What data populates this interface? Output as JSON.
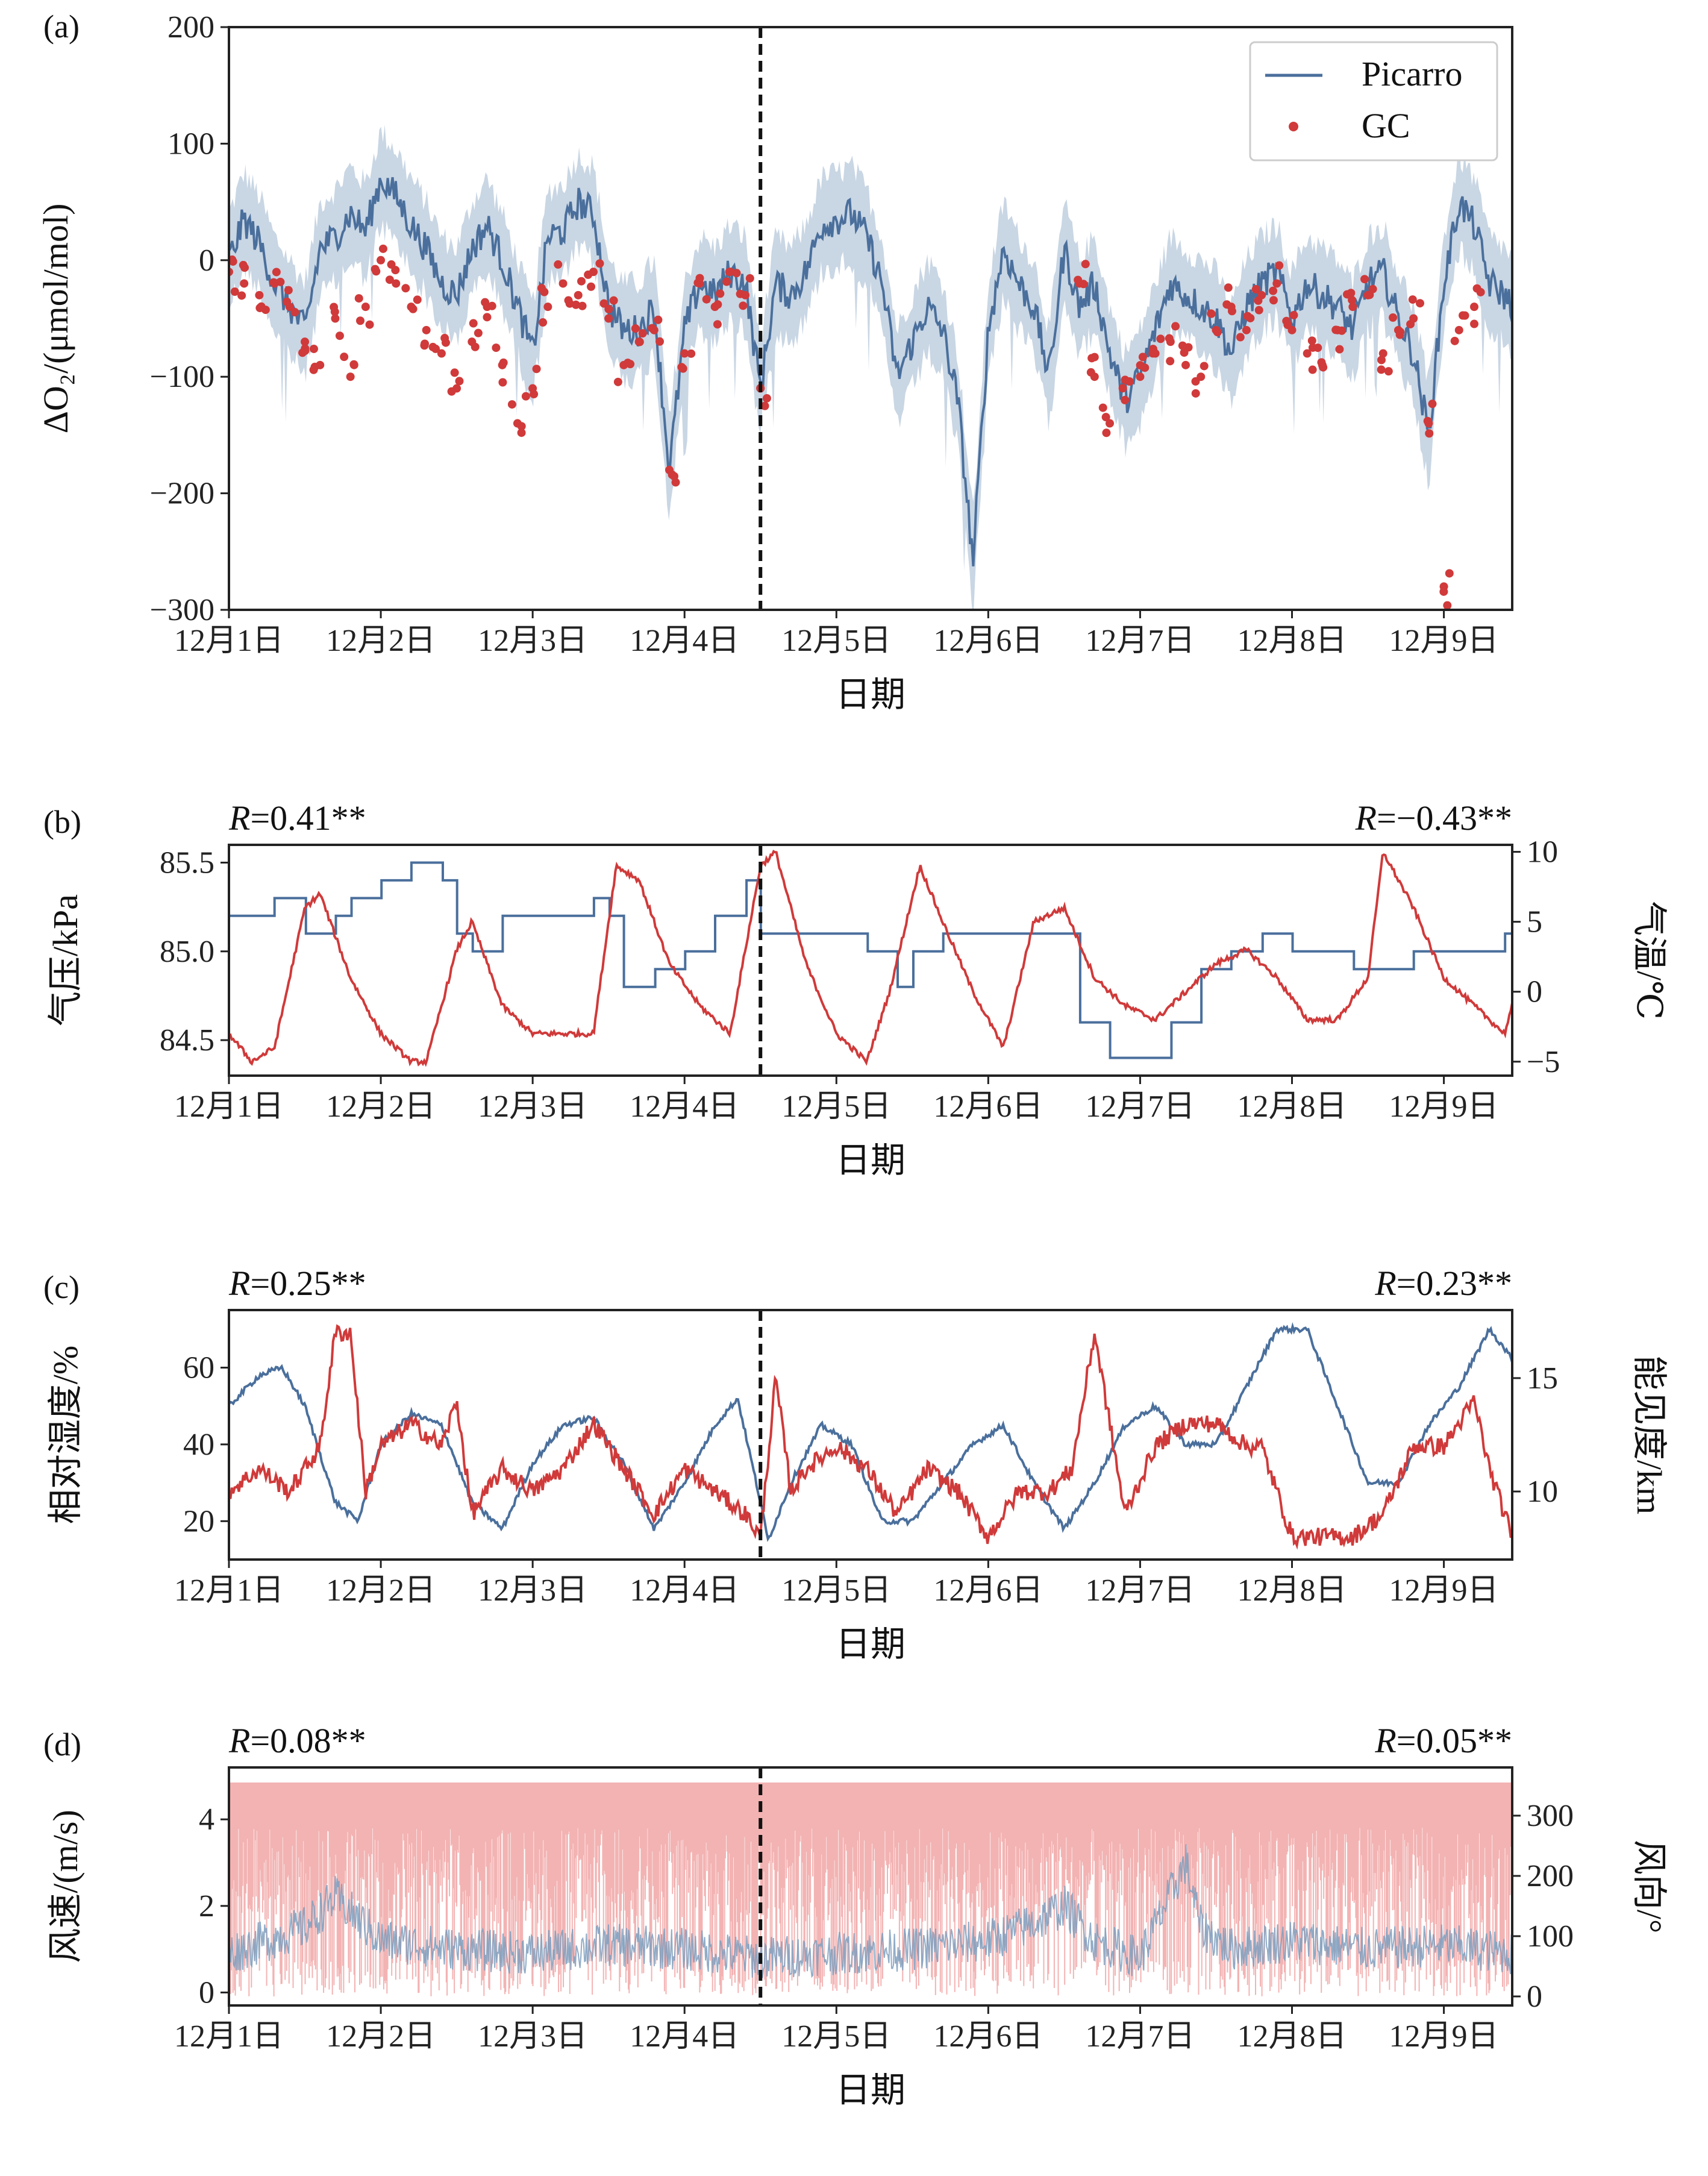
{
  "x_tick_labels": [
    "12月1日",
    "12月2日",
    "12月3日",
    "12月4日",
    "12月5日",
    "12月6日",
    "12月7日",
    "12月8日",
    "12月9日"
  ],
  "x_label": "日期",
  "divider_day": 4.5,
  "colors": {
    "blue": "#4a6f9c",
    "blue_band": "#c9d6e4",
    "red": "#d03a3a",
    "red_light": "#ef9a9a",
    "blue_light": "#7e9dbd"
  },
  "chart_data": [
    {
      "id": "a",
      "panel_label": "(a)",
      "type": "line",
      "ylabel": "ΔO₂/(μmol/mol)",
      "ylim": [
        -300,
        200
      ],
      "yticks": [
        200,
        100,
        0,
        -100,
        -200,
        -300
      ],
      "ytick_labels": [
        "200",
        "100",
        "0",
        "−100",
        "−200",
        "−300"
      ],
      "legend": {
        "placement": "top-right",
        "entries": [
          "Picarro",
          "GC"
        ]
      },
      "series": [
        {
          "name": "Picarro",
          "type": "line",
          "uncertainty_band": 40,
          "x": [
            1.0,
            1.1,
            1.2,
            1.3,
            1.4,
            1.5,
            1.6,
            1.7,
            1.8,
            1.9,
            2.0,
            2.1,
            2.2,
            2.3,
            2.4,
            2.5,
            2.6,
            2.7,
            2.8,
            2.9,
            3.0,
            3.1,
            3.2,
            3.3,
            3.4,
            3.5,
            3.6,
            3.7,
            3.8,
            3.9,
            4.0,
            4.1,
            4.2,
            4.3,
            4.4,
            4.5,
            4.6,
            4.7,
            4.8,
            4.9,
            5.0,
            5.1,
            5.2,
            5.3,
            5.4,
            5.5,
            5.6,
            5.7,
            5.8,
            5.9,
            6.0,
            6.1,
            6.2,
            6.3,
            6.4,
            6.5,
            6.6,
            6.7,
            6.8,
            6.9,
            7.0,
            7.1,
            7.2,
            7.3,
            7.4,
            7.5,
            7.6,
            7.7,
            7.8,
            7.9,
            8.0,
            8.1,
            8.2,
            8.3,
            8.4,
            8.5,
            8.6,
            8.7,
            8.8,
            8.9,
            9.0,
            9.1,
            9.2,
            9.3,
            9.4,
            9.45
          ],
          "values": [
            0,
            35,
            15,
            -20,
            -40,
            -60,
            10,
            20,
            40,
            25,
            70,
            55,
            30,
            10,
            -20,
            -30,
            10,
            30,
            0,
            -40,
            -80,
            20,
            25,
            50,
            40,
            -40,
            -60,
            -60,
            -40,
            -180,
            -60,
            -20,
            -30,
            -10,
            -20,
            -110,
            -20,
            -30,
            -10,
            30,
            35,
            40,
            20,
            -20,
            -100,
            -70,
            -40,
            -60,
            -120,
            -260,
            -60,
            10,
            -20,
            -40,
            -100,
            10,
            -40,
            -20,
            -80,
            -120,
            -100,
            -60,
            -20,
            -30,
            -40,
            -50,
            -80,
            -40,
            -20,
            -10,
            -50,
            -20,
            -30,
            -40,
            -60,
            -20,
            -10,
            -50,
            -80,
            -150,
            -20,
            50,
            30,
            -20,
            -30,
            -40
          ]
        },
        {
          "name": "GC",
          "type": "scatter",
          "x": [
            1.0,
            1.1,
            1.2,
            1.3,
            1.4,
            1.5,
            1.6,
            1.7,
            1.8,
            1.9,
            2.0,
            2.1,
            2.2,
            2.3,
            2.4,
            2.5,
            2.6,
            2.7,
            2.8,
            2.9,
            3.0,
            3.1,
            3.2,
            3.3,
            3.4,
            3.5,
            3.6,
            3.7,
            3.8,
            3.9,
            4.0,
            4.1,
            4.2,
            4.3,
            4.4,
            4.5,
            6.6,
            6.7,
            6.8,
            6.9,
            7.0,
            7.1,
            7.2,
            7.3,
            7.4,
            7.5,
            7.6,
            7.7,
            7.8,
            7.9,
            8.0,
            8.1,
            8.2,
            8.3,
            8.4,
            8.5,
            8.6,
            8.7,
            8.8,
            8.9,
            9.0,
            9.1,
            9.2
          ],
          "values": [
            -10,
            -20,
            -30,
            -20,
            -40,
            -70,
            -90,
            -50,
            -100,
            -40,
            0,
            -20,
            -40,
            -60,
            -80,
            -110,
            -70,
            -40,
            -90,
            -140,
            -110,
            -40,
            -20,
            -30,
            -10,
            -50,
            -90,
            -70,
            -60,
            -180,
            -80,
            -20,
            -40,
            -10,
            -30,
            -110,
            -20,
            -100,
            -140,
            -120,
            -100,
            -80,
            -70,
            -90,
            -100,
            -60,
            -40,
            -60,
            -30,
            -20,
            -60,
            -80,
            -90,
            -60,
            -40,
            -30,
            -80,
            -60,
            -50,
            -140,
            -280,
            -60,
            -40
          ]
        }
      ],
      "correlations": []
    },
    {
      "id": "b",
      "panel_label": "(b)",
      "type": "line",
      "ylabel_left": "气压/kPa",
      "ylabel_right": "气温/℃",
      "ylim_left": [
        84.3,
        85.6
      ],
      "ylim_right": [
        -6,
        10.5
      ],
      "yticks_left": [
        85.5,
        85.0,
        84.5
      ],
      "ytick_labels_left": [
        "85.5",
        "85.0",
        "84.5"
      ],
      "yticks_right": [
        10,
        5,
        0,
        -5
      ],
      "ytick_labels_right": [
        "10",
        "5",
        "0",
        "−5"
      ],
      "r_left": "=0.41**",
      "r_right": "=−0.43**",
      "series": [
        {
          "name": "气压",
          "axis": "left",
          "step": true,
          "x": [
            1.0,
            1.3,
            1.5,
            1.7,
            1.8,
            2.0,
            2.2,
            2.4,
            2.5,
            2.6,
            2.8,
            3.0,
            3.2,
            3.4,
            3.5,
            3.6,
            3.8,
            4.0,
            4.2,
            4.4,
            4.5,
            4.7,
            5.0,
            5.2,
            5.4,
            5.5,
            5.7,
            6.0,
            6.2,
            6.4,
            6.6,
            6.8,
            7.0,
            7.2,
            7.4,
            7.6,
            7.8,
            8.0,
            8.2,
            8.4,
            8.6,
            8.8,
            9.0,
            9.2,
            9.4,
            9.45
          ],
          "values": [
            85.2,
            85.3,
            85.1,
            85.2,
            85.3,
            85.4,
            85.5,
            85.4,
            85.1,
            85.0,
            85.2,
            85.2,
            85.2,
            85.3,
            85.2,
            84.8,
            84.9,
            85.0,
            85.2,
            85.4,
            85.1,
            85.1,
            85.1,
            85.0,
            84.8,
            85.0,
            85.1,
            85.1,
            85.1,
            85.1,
            84.6,
            84.4,
            84.4,
            84.6,
            84.9,
            85.0,
            85.1,
            85.0,
            85.0,
            84.9,
            84.9,
            85.0,
            85.0,
            85.0,
            85.1,
            85.1
          ]
        },
        {
          "name": "气温",
          "axis": "right",
          "x": [
            1.0,
            1.15,
            1.3,
            1.5,
            1.6,
            1.8,
            2.0,
            2.2,
            2.3,
            2.5,
            2.6,
            2.8,
            3.0,
            3.2,
            3.4,
            3.55,
            3.7,
            3.9,
            4.1,
            4.3,
            4.5,
            4.6,
            4.8,
            5.0,
            5.2,
            5.35,
            5.55,
            5.7,
            5.9,
            6.1,
            6.3,
            6.5,
            6.7,
            6.9,
            7.1,
            7.3,
            7.5,
            7.7,
            7.9,
            8.1,
            8.3,
            8.5,
            8.6,
            8.8,
            9.0,
            9.2,
            9.4,
            9.45
          ],
          "values": [
            -3,
            -5,
            -4,
            6,
            7,
            1,
            -3,
            -5,
            -5,
            3,
            5,
            -1,
            -3,
            -3,
            -3,
            9,
            8,
            2,
            -1,
            -3,
            9,
            10,
            2,
            -3,
            -5,
            0,
            9,
            5,
            0,
            -4,
            5,
            6,
            1,
            -1,
            -2,
            0,
            2,
            3,
            1,
            -2,
            -2,
            1,
            10,
            6,
            1,
            -1,
            -3,
            -1
          ]
        }
      ]
    },
    {
      "id": "c",
      "panel_label": "(c)",
      "type": "line",
      "ylabel_left": "相对湿度/%",
      "ylabel_right": "能见度/km",
      "ylim_left": [
        10,
        75
      ],
      "ylim_right": [
        7,
        18
      ],
      "yticks_left": [
        60,
        40,
        20
      ],
      "ytick_labels_left": [
        "60",
        "40",
        "20"
      ],
      "yticks_right": [
        15,
        10
      ],
      "ytick_labels_right": [
        "15",
        "10"
      ],
      "r_left": "=0.25**",
      "r_right": "=0.23**",
      "series": [
        {
          "name": "相对湿度",
          "axis": "left",
          "x": [
            1.0,
            1.2,
            1.35,
            1.5,
            1.7,
            1.85,
            2.0,
            2.2,
            2.4,
            2.6,
            2.8,
            3.0,
            3.2,
            3.4,
            3.6,
            3.8,
            4.0,
            4.2,
            4.35,
            4.5,
            4.55,
            4.7,
            4.9,
            5.1,
            5.3,
            5.5,
            5.7,
            5.9,
            6.1,
            6.3,
            6.5,
            6.7,
            6.9,
            7.1,
            7.3,
            7.5,
            7.7,
            7.9,
            8.1,
            8.3,
            8.5,
            8.7,
            8.9,
            9.1,
            9.3,
            9.4,
            9.45
          ],
          "values": [
            50,
            58,
            60,
            50,
            25,
            20,
            40,
            48,
            45,
            25,
            18,
            35,
            45,
            47,
            35,
            18,
            30,
            45,
            52,
            25,
            15,
            30,
            45,
            40,
            20,
            20,
            30,
            40,
            45,
            30,
            18,
            30,
            45,
            50,
            40,
            40,
            55,
            70,
            70,
            50,
            30,
            30,
            45,
            55,
            70,
            65,
            62
          ]
        },
        {
          "name": "能见度",
          "axis": "right",
          "x": [
            1.0,
            1.2,
            1.4,
            1.6,
            1.7,
            1.8,
            1.9,
            2.0,
            2.2,
            2.4,
            2.5,
            2.6,
            2.8,
            3.0,
            3.2,
            3.4,
            3.6,
            3.8,
            4.0,
            4.2,
            4.4,
            4.5,
            4.6,
            4.7,
            4.8,
            5.0,
            5.2,
            5.4,
            5.6,
            5.8,
            6.0,
            6.2,
            6.4,
            6.55,
            6.7,
            6.9,
            7.1,
            7.3,
            7.5,
            7.7,
            7.8,
            8.0,
            8.2,
            8.4,
            8.6,
            8.8,
            9.0,
            9.2,
            9.3,
            9.4,
            9.45
          ],
          "values": [
            10,
            11,
            10,
            12,
            17,
            17,
            10,
            12,
            13,
            12,
            14,
            9,
            11,
            10,
            11,
            13,
            11,
            9,
            11,
            10,
            9,
            8,
            15,
            10,
            11,
            12,
            11,
            9,
            11,
            10,
            8,
            10,
            10,
            11,
            17,
            9,
            12,
            13,
            13,
            12,
            12,
            8,
            8,
            8,
            9,
            12,
            12,
            14,
            11,
            9,
            8
          ]
        }
      ]
    },
    {
      "id": "d",
      "panel_label": "(d)",
      "type": "line",
      "ylabel_left": "风速/(m/s)",
      "ylabel_right": "风向/°",
      "ylim_left": [
        -0.3,
        5.2
      ],
      "ylim_right": [
        -15,
        380
      ],
      "yticks_left": [
        4,
        2,
        0
      ],
      "ytick_labels_left": [
        "4",
        "2",
        "0"
      ],
      "yticks_right": [
        300,
        200,
        100,
        0
      ],
      "ytick_labels_right": [
        "300",
        "200",
        "100",
        "0"
      ],
      "r_left": "=0.08**",
      "r_right": "=0.05**",
      "series": [
        {
          "name": "风速",
          "axis": "left",
          "noisy": true,
          "x": [
            1.0,
            1.5,
            1.7,
            2.0,
            2.5,
            3.0,
            3.5,
            4.0,
            4.5,
            5.0,
            5.5,
            6.0,
            6.3,
            6.5,
            6.7,
            7.0,
            7.3,
            7.4,
            7.6,
            8.0,
            8.5,
            9.0,
            9.45
          ],
          "values": [
            0.9,
            1.5,
            2.2,
            1.2,
            1.0,
            0.9,
            1.1,
            1.0,
            0.8,
            0.9,
            1.0,
            1.2,
            1.6,
            2.0,
            1.2,
            0.8,
            3.0,
            1.5,
            1.0,
            1.2,
            1.0,
            1.1,
            0.9
          ]
        },
        {
          "name": "风向",
          "axis": "right",
          "noisy": true,
          "x": [
            1.0,
            9.45
          ],
          "values": [
            300,
            300
          ]
        }
      ]
    }
  ]
}
